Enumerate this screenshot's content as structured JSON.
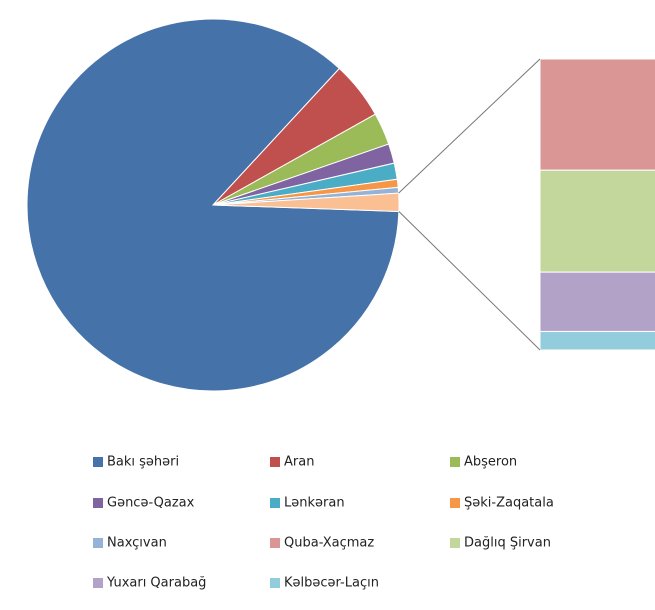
{
  "chart_data": {
    "type": "pie-of-bar",
    "categories": [
      "Bakı şəhəri",
      "Aran",
      "Abşeron",
      "Gəncə-Qazax",
      "Lənkəran",
      "Şəki-Zaqatala",
      "Naxçıvan",
      "Quba-Xaçmaz",
      "Dağlıq Şirvan",
      "Yuxarı Qarabağ",
      "Kəlbəcər-Laçın"
    ],
    "values": [
      86.33,
      5.0,
      2.8,
      1.7,
      1.4,
      0.7,
      0.5,
      0.6,
      0.55,
      0.32,
      0.1
    ],
    "colors": [
      "#4672aa",
      "#c0504d",
      "#9bbb59",
      "#8064a2",
      "#4bacc6",
      "#f79646",
      "#95b3d7",
      "#d99694",
      "#c3d69b",
      "#b3a2c7",
      "#93cddd"
    ],
    "secondary_from": 7,
    "other_color": "#fabf93",
    "legend": "bottom"
  }
}
